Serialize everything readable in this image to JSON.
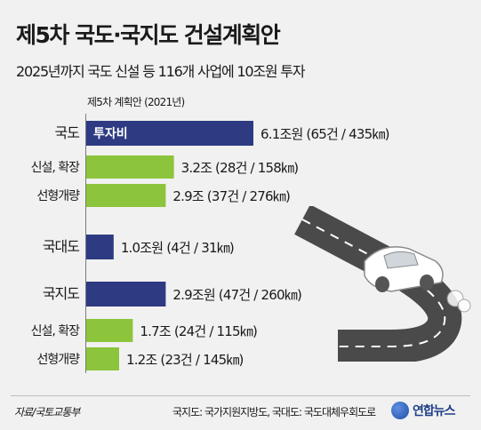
{
  "title": "제5차 국도·국지도 건설계획안",
  "subtitle": "2025년까지 국도 신설 등 116개 사업에 10조원 투자",
  "plan_label": "제5차 계획안 (2021년)",
  "source": "자료/국토교통부",
  "note": "국지도: 국가지원지방도, 국대도: 국도대체우회도로",
  "brand": "연합뉴스",
  "colors": {
    "total_bar": "#2e3b82",
    "sub_bar": "#8cc43c",
    "background": "#f1f1f1"
  },
  "chart_data": {
    "type": "bar",
    "orientation": "horizontal",
    "title": "제5차 국도·국지도 건설계획안",
    "subtitle": "2025년까지 국도 신설 등 116개 사업에 10조원 투자",
    "value_unit": "조원",
    "categories": [
      "국도",
      "신설, 확장",
      "선형개량",
      "국대도",
      "국지도",
      "신설, 확장",
      "선형개량"
    ],
    "values": [
      6.1,
      3.2,
      2.9,
      1.0,
      2.9,
      1.7,
      1.2
    ],
    "bar_roles": [
      "total",
      "sub",
      "sub",
      "total",
      "total",
      "sub",
      "sub"
    ],
    "bar_inner_labels": [
      "투자비",
      "",
      "",
      "",
      "",
      "",
      ""
    ],
    "value_labels": [
      "6.1조원 (65건 / 435㎞)",
      "3.2조 (28건 / 158㎞)",
      "2.9조 (37건 / 276㎞)",
      "1.0조원 (4건 / 31㎞)",
      "2.9조원 (47건 / 260㎞)",
      "1.7조 (24건 / 115㎞)",
      "1.2조 (23건 / 145㎞)"
    ],
    "xlim": [
      0,
      6.1
    ]
  }
}
